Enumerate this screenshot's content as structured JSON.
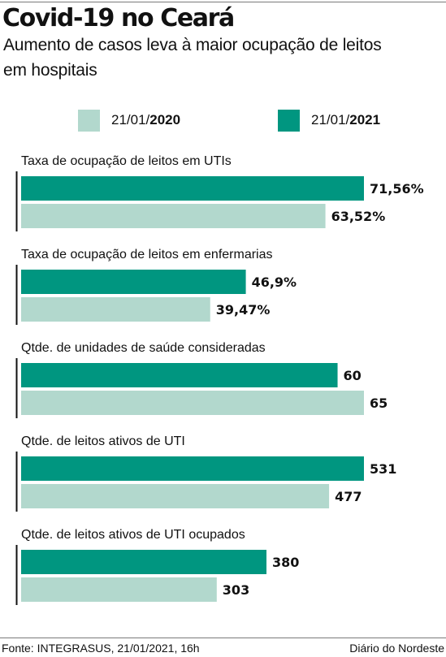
{
  "header": {
    "title": "Covid-19 no Ceará",
    "subtitle": "Aumento de casos leva à maior ocupação de leitos em hospitais"
  },
  "legend": {
    "items": [
      {
        "date_prefix": "21/01/",
        "year": "2020",
        "color": "#b2d8cd"
      },
      {
        "date_prefix": "21/01/",
        "year": "2021",
        "color": "#009680"
      }
    ]
  },
  "colors": {
    "series_2021": "#009680",
    "series_2020": "#b2d8cd",
    "axis": "#111111",
    "text": "#111111"
  },
  "chart_data": {
    "type": "bar",
    "orientation": "horizontal",
    "grouping": "grouped",
    "legend_position": "top",
    "grid": false,
    "scale_note": "Each panel uses its own scale",
    "categories": [
      "Taxa de ocupação de leitos em UTIs",
      "Taxa de ocupação de leitos em enfermarias",
      "Qtde. de unidades de saúde consideradas",
      "Qtde. de leitos ativos de UTI",
      "Qtde. de leitos ativos de UTI ocupados"
    ],
    "series": [
      {
        "name": "21/01/2021",
        "values": [
          71.56,
          46.9,
          60,
          531,
          380
        ],
        "labels": [
          "71,56%",
          "46,9%",
          "60",
          "531",
          "380"
        ]
      },
      {
        "name": "21/01/2020",
        "values": [
          63.52,
          39.47,
          65,
          477,
          303
        ],
        "labels": [
          "63,52%",
          "39,47%",
          "65",
          "477",
          "303"
        ]
      }
    ],
    "panel_max": [
      71.56,
      71.56,
      65,
      531,
      531
    ]
  },
  "footer": {
    "source": "Fonte: INTEGRASUS, 21/01/2021, 16h",
    "credit": "Diário do Nordeste"
  }
}
